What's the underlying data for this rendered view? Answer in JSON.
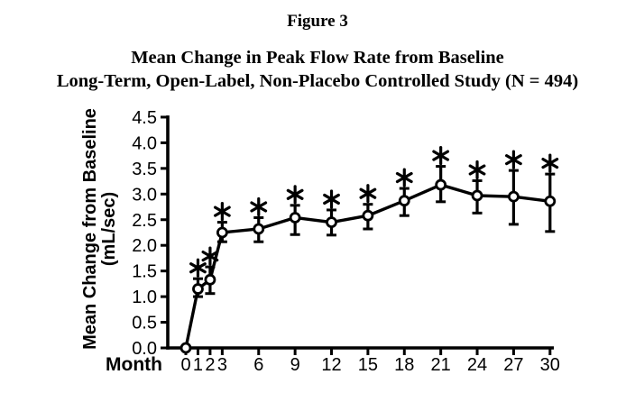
{
  "figure": {
    "label": "Figure 3"
  },
  "chart_data": {
    "type": "line",
    "title": "Mean Change in Peak Flow Rate from Baseline",
    "subtitle": "Long-Term, Open-Label, Non-Placebo Controlled Study (N = 494)",
    "xlabel": "Month",
    "ylabel": "Mean Change from Baseline (mL/sec)",
    "ylabel_line1": "Mean Change from Baseline",
    "ylabel_line2": "(mL/sec)",
    "xlim": [
      0,
      30
    ],
    "ylim": [
      0,
      4.5
    ],
    "ytick_step": 0.5,
    "yticks": [
      "4.5",
      "4.0",
      "3.5",
      "3.0",
      "2.5",
      "2.0",
      "1.5",
      "1.0",
      "0.5",
      "0.0"
    ],
    "xticks": [
      0,
      1,
      2,
      3,
      6,
      9,
      12,
      15,
      18,
      21,
      24,
      27,
      30
    ],
    "grid": false,
    "legend": "none",
    "marker": "open-circle",
    "line_color": "#000000",
    "background": "#ffffff",
    "significance_marker": "*",
    "series": [
      {
        "name": "Mean change in peak flow rate (mL/sec)",
        "x": [
          0,
          1,
          2,
          3,
          6,
          9,
          12,
          15,
          18,
          21,
          24,
          27,
          30
        ],
        "values": [
          0.0,
          1.15,
          1.33,
          2.25,
          2.32,
          2.54,
          2.45,
          2.58,
          2.87,
          3.18,
          2.97,
          2.95,
          2.86
        ],
        "err_up": [
          0,
          0.2,
          0.25,
          0.2,
          0.22,
          0.24,
          0.24,
          0.22,
          0.24,
          0.36,
          0.29,
          0.51,
          0.53
        ],
        "err_down": [
          0,
          0.15,
          0.27,
          0.18,
          0.25,
          0.33,
          0.25,
          0.26,
          0.29,
          0.33,
          0.34,
          0.54,
          0.59
        ],
        "starred": [
          false,
          true,
          true,
          true,
          true,
          true,
          true,
          true,
          true,
          true,
          true,
          true,
          true
        ]
      }
    ]
  }
}
